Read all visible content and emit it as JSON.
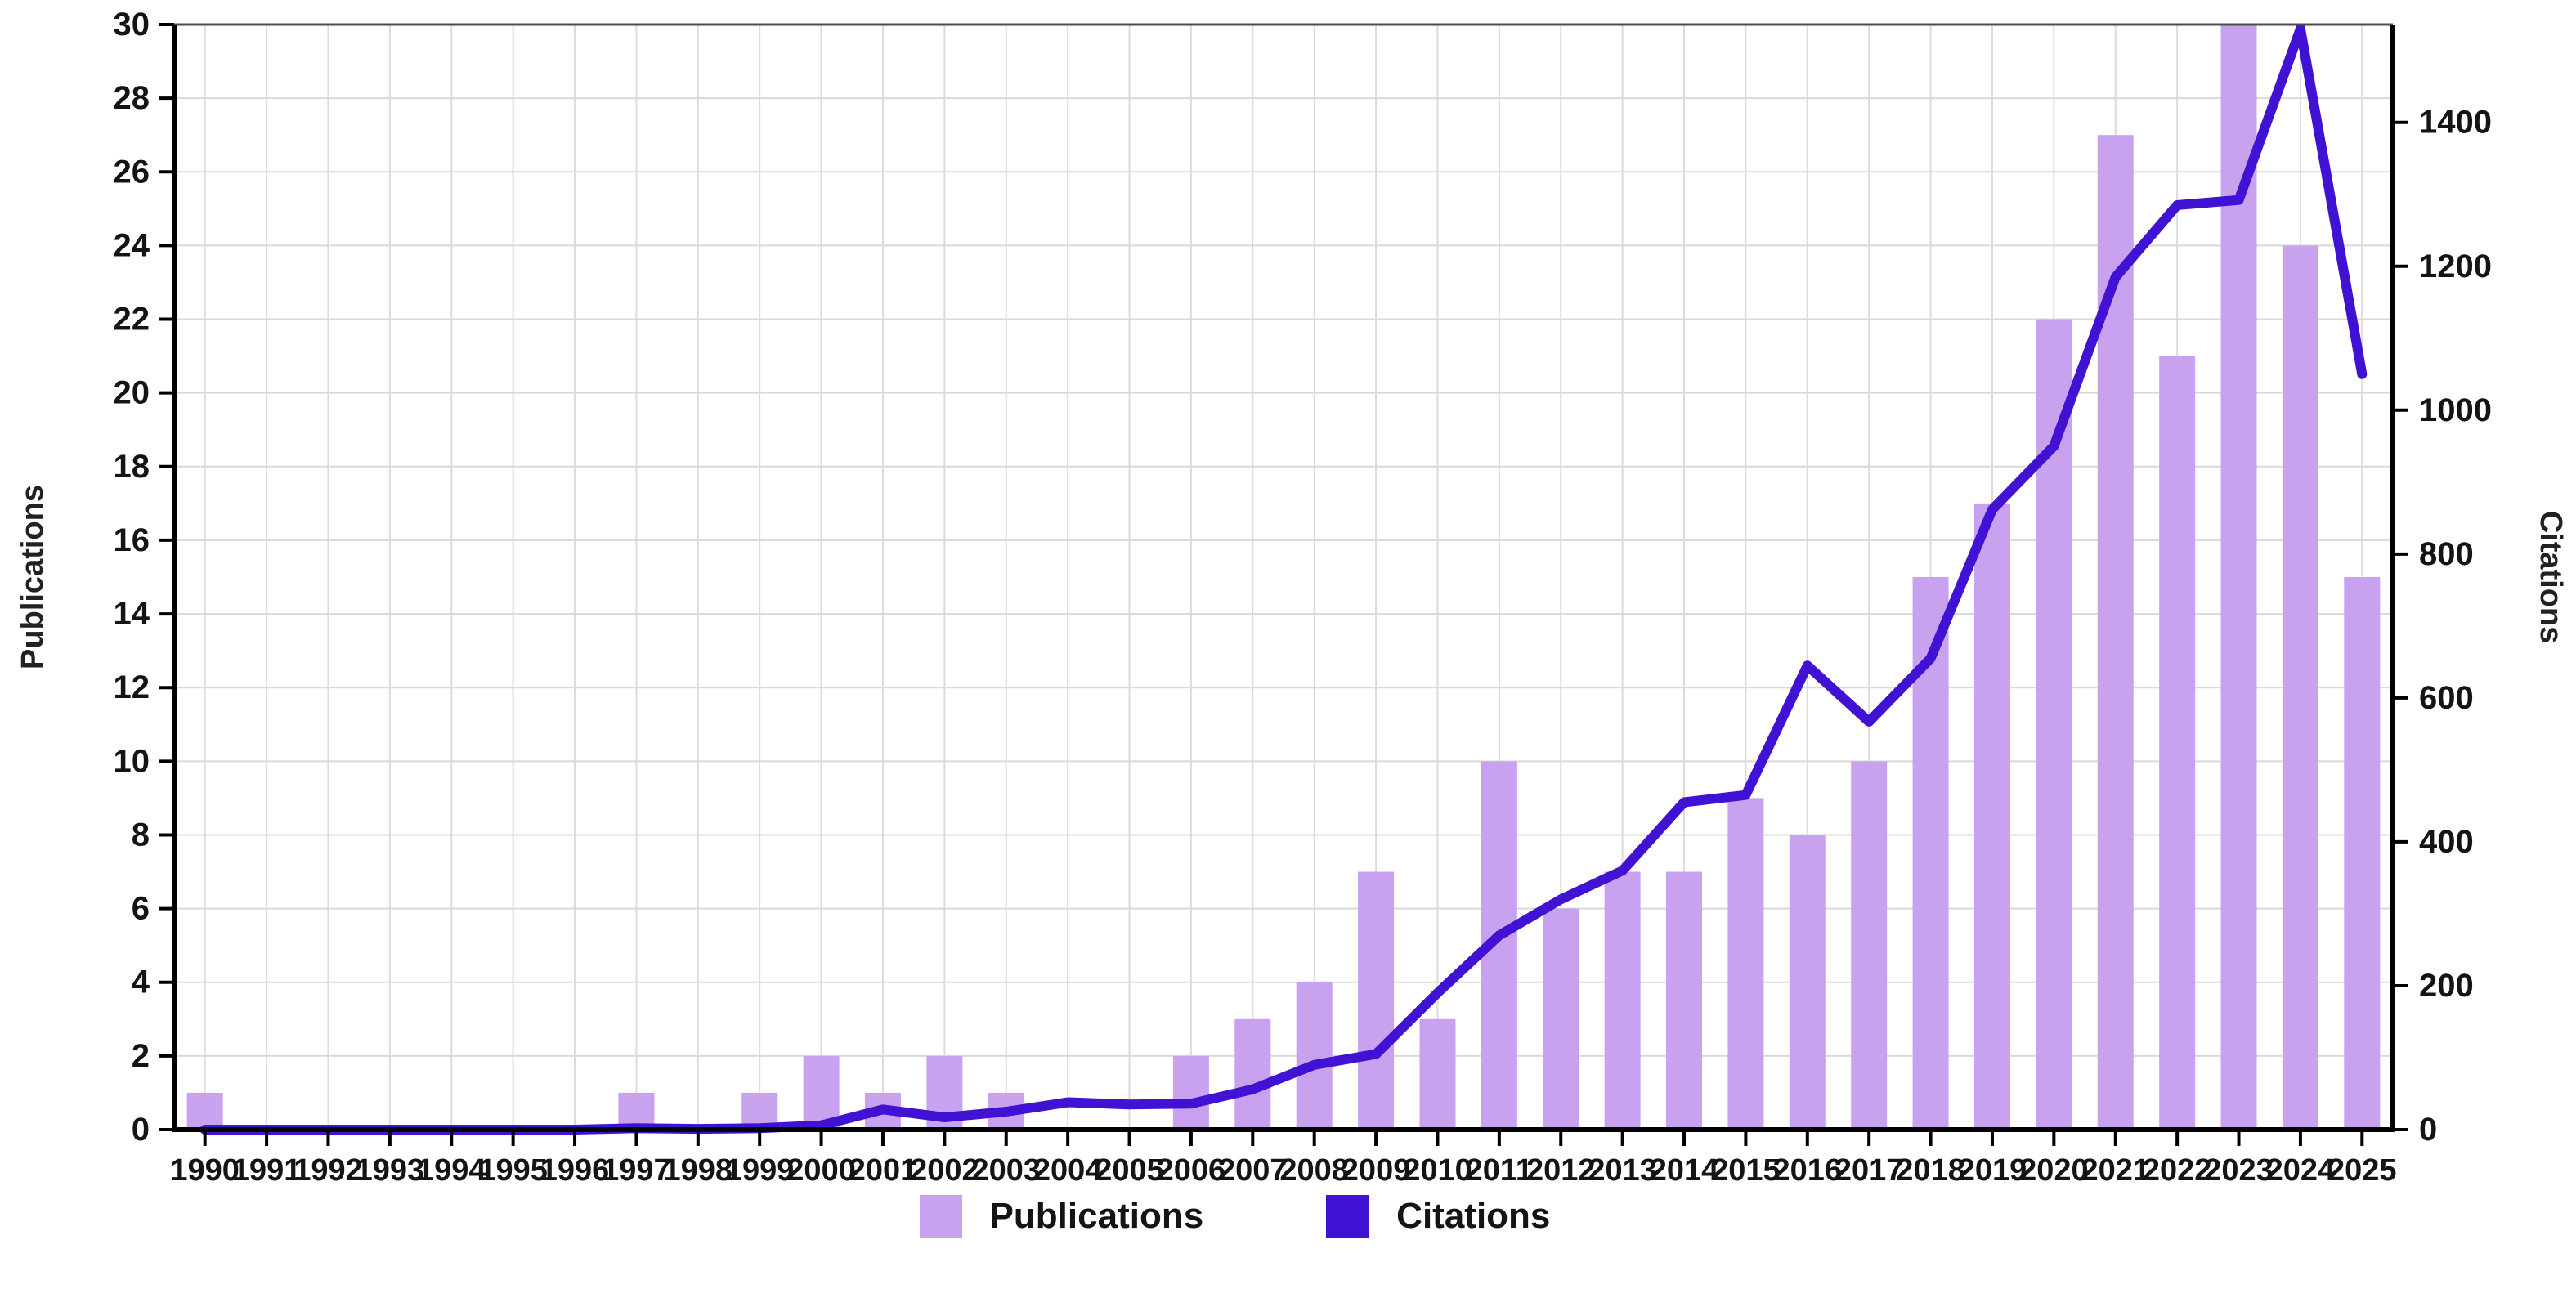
{
  "chart_data": {
    "type": "bar",
    "title": "",
    "categories": [
      "1990",
      "1991",
      "1992",
      "1993",
      "1994",
      "1995",
      "1996",
      "1997",
      "1998",
      "1999",
      "2000",
      "2001",
      "2002",
      "2003",
      "2004",
      "2005",
      "2006",
      "2007",
      "2008",
      "2009",
      "2010",
      "2011",
      "2012",
      "2013",
      "2014",
      "2015",
      "2016",
      "2017",
      "2018",
      "2019",
      "2020",
      "2021",
      "2022",
      "2023",
      "2024",
      "2025"
    ],
    "series": [
      {
        "name": "Publications",
        "type": "bar",
        "axis": "left",
        "color": "#c9a2ef",
        "values": [
          1,
          0,
          0,
          0,
          0,
          0,
          0,
          1,
          0,
          1,
          2,
          1,
          2,
          1,
          0,
          0,
          2,
          3,
          4,
          7,
          3,
          10,
          6,
          7,
          7,
          9,
          8,
          10,
          15,
          17,
          22,
          27,
          21,
          30,
          24,
          15
        ]
      },
      {
        "name": "Citations",
        "type": "line",
        "axis": "right",
        "color": "#4111d4",
        "values": [
          0,
          0,
          0,
          0,
          0,
          0,
          0,
          2,
          1,
          2,
          6,
          28,
          17,
          25,
          38,
          35,
          36,
          56,
          90,
          105,
          190,
          270,
          320,
          360,
          455,
          465,
          645,
          567,
          655,
          862,
          950,
          1185,
          1285,
          1292,
          1530,
          1050
        ]
      }
    ],
    "left_axis": {
      "label": "Publications",
      "min": 0,
      "max": 30,
      "tick_step": 2,
      "ticks": [
        0,
        2,
        4,
        6,
        8,
        10,
        12,
        14,
        16,
        18,
        20,
        22,
        24,
        26,
        28,
        30
      ]
    },
    "right_axis": {
      "label": "Citations",
      "min": 0,
      "max": 1536,
      "tick_step": 200,
      "ticks": [
        0,
        200,
        400,
        600,
        800,
        1000,
        1200,
        1400
      ]
    },
    "grid": true,
    "legend_position": "bottom",
    "legend": [
      "Publications",
      "Citations"
    ]
  }
}
